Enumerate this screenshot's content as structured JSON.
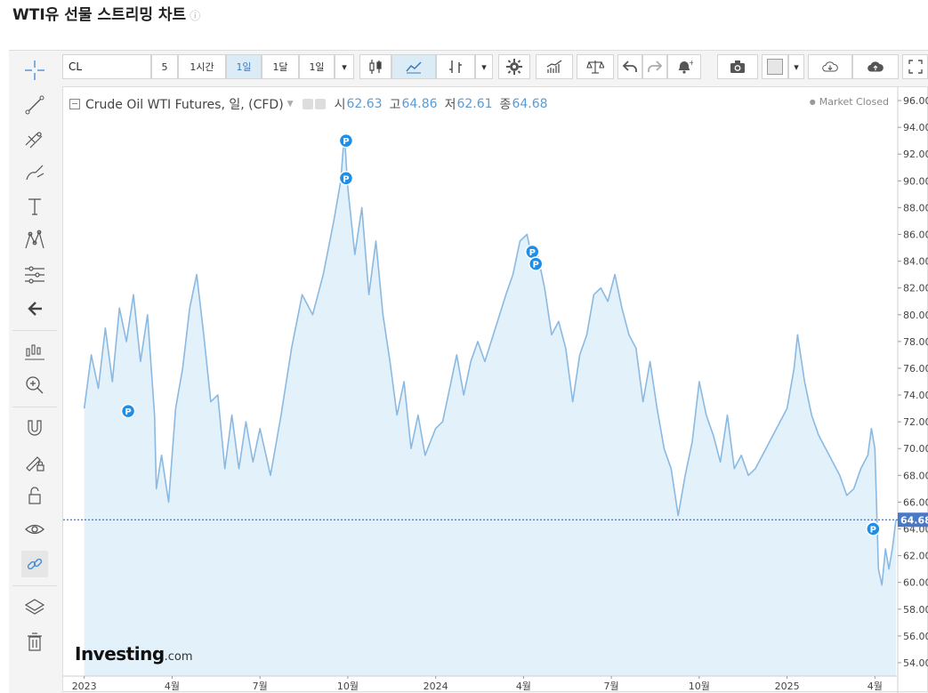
{
  "page": {
    "title": "WTI유 선물 스트리밍 차트",
    "info_icon": "info-circle-icon"
  },
  "toolbar": {
    "symbol": "CL",
    "resolutions": [
      "5",
      "1시간",
      "1일",
      "1달"
    ],
    "selected_resolution": "1일",
    "range": "1일",
    "icons": [
      "candles-icon",
      "line-chart-icon",
      "bars-icon",
      "gear-icon",
      "indicators-icon",
      "compare-icon",
      "undo-icon",
      "redo-icon",
      "alert-icon",
      "camera-icon",
      "color-square-icon",
      "cloud-download-icon",
      "cloud-upload-icon",
      "fullscreen-icon"
    ]
  },
  "left_tools": [
    "crosshair-icon",
    "trend-line-icon",
    "fib-tools-icon",
    "brush-icon",
    "text-icon",
    "pattern-icon",
    "measure-icon",
    "back-arrow-icon",
    "long-position-icon",
    "zoom-icon",
    "magnet-icon",
    "lock-draw-icon",
    "unlock-icon",
    "eye-icon",
    "link-icon",
    "layers-icon",
    "trash-icon"
  ],
  "legend": {
    "name": "Crude Oil WTI Futures, 일, (CFD)",
    "open_label": "시",
    "open": "62.63",
    "high_label": "고",
    "high": "64.86",
    "low_label": "저",
    "low": "62.61",
    "close_label": "종",
    "close": "64.68",
    "status": "Market Closed"
  },
  "watermark": {
    "brand": "Investing",
    "tld": ".com"
  },
  "chart_data": {
    "type": "area",
    "series": [
      {
        "values": [
          [
            2023.0,
            73.0
          ],
          [
            2023.02,
            77.0
          ],
          [
            2023.04,
            74.5
          ],
          [
            2023.06,
            79.0
          ],
          [
            2023.08,
            75.0
          ],
          [
            2023.1,
            80.5
          ],
          [
            2023.12,
            78.0
          ],
          [
            2023.14,
            81.5
          ],
          [
            2023.16,
            76.5
          ],
          [
            2023.18,
            80.0
          ],
          [
            2023.2,
            72.5
          ],
          [
            2023.205,
            67.0
          ],
          [
            2023.22,
            69.5
          ],
          [
            2023.24,
            66.0
          ],
          [
            2023.26,
            73.0
          ],
          [
            2023.28,
            76.0
          ],
          [
            2023.3,
            80.5
          ],
          [
            2023.32,
            83.0
          ],
          [
            2023.34,
            78.5
          ],
          [
            2023.36,
            73.5
          ],
          [
            2023.38,
            74.0
          ],
          [
            2023.4,
            68.5
          ],
          [
            2023.42,
            72.5
          ],
          [
            2023.44,
            68.5
          ],
          [
            2023.46,
            72.0
          ],
          [
            2023.48,
            69.0
          ],
          [
            2023.5,
            71.5
          ],
          [
            2023.53,
            68.0
          ],
          [
            2023.56,
            72.5
          ],
          [
            2023.59,
            77.5
          ],
          [
            2023.62,
            81.5
          ],
          [
            2023.65,
            80.0
          ],
          [
            2023.68,
            83.0
          ],
          [
            2023.71,
            87.0
          ],
          [
            2023.73,
            90.0
          ],
          [
            2023.74,
            93.5
          ],
          [
            2023.75,
            89.5
          ],
          [
            2023.77,
            84.5
          ],
          [
            2023.79,
            88.0
          ],
          [
            2023.81,
            81.5
          ],
          [
            2023.83,
            85.5
          ],
          [
            2023.85,
            80.0
          ],
          [
            2023.87,
            76.5
          ],
          [
            2023.89,
            72.5
          ],
          [
            2023.91,
            75.0
          ],
          [
            2023.93,
            70.0
          ],
          [
            2023.95,
            72.5
          ],
          [
            2023.97,
            69.5
          ],
          [
            2024.0,
            71.5
          ],
          [
            2024.02,
            72.0
          ],
          [
            2024.04,
            74.5
          ],
          [
            2024.06,
            77.0
          ],
          [
            2024.08,
            74.0
          ],
          [
            2024.1,
            76.5
          ],
          [
            2024.12,
            78.0
          ],
          [
            2024.14,
            76.5
          ],
          [
            2024.17,
            79.0
          ],
          [
            2024.2,
            81.5
          ],
          [
            2024.22,
            83.0
          ],
          [
            2024.24,
            85.5
          ],
          [
            2024.26,
            86.0
          ],
          [
            2024.28,
            83.5
          ],
          [
            2024.29,
            84.5
          ],
          [
            2024.31,
            82.0
          ],
          [
            2024.33,
            78.5
          ],
          [
            2024.35,
            79.5
          ],
          [
            2024.37,
            77.5
          ],
          [
            2024.39,
            73.5
          ],
          [
            2024.41,
            77.0
          ],
          [
            2024.43,
            78.5
          ],
          [
            2024.45,
            81.5
          ],
          [
            2024.47,
            82.0
          ],
          [
            2024.49,
            81.0
          ],
          [
            2024.51,
            83.0
          ],
          [
            2024.53,
            80.5
          ],
          [
            2024.55,
            78.5
          ],
          [
            2024.57,
            77.5
          ],
          [
            2024.59,
            73.5
          ],
          [
            2024.61,
            76.5
          ],
          [
            2024.63,
            73.0
          ],
          [
            2024.65,
            70.0
          ],
          [
            2024.67,
            68.5
          ],
          [
            2024.69,
            65.0
          ],
          [
            2024.71,
            68.0
          ],
          [
            2024.73,
            70.5
          ],
          [
            2024.75,
            75.0
          ],
          [
            2024.77,
            72.5
          ],
          [
            2024.79,
            71.0
          ],
          [
            2024.81,
            69.0
          ],
          [
            2024.83,
            72.5
          ],
          [
            2024.85,
            68.5
          ],
          [
            2024.87,
            69.5
          ],
          [
            2024.89,
            68.0
          ],
          [
            2024.91,
            68.5
          ],
          [
            2024.93,
            69.5
          ],
          [
            2024.95,
            70.5
          ],
          [
            2024.97,
            71.5
          ],
          [
            2025.0,
            73.0
          ],
          [
            2025.02,
            76.0
          ],
          [
            2025.03,
            78.5
          ],
          [
            2025.05,
            75.0
          ],
          [
            2025.07,
            72.5
          ],
          [
            2025.09,
            71.0
          ],
          [
            2025.11,
            70.0
          ],
          [
            2025.13,
            69.0
          ],
          [
            2025.15,
            68.0
          ],
          [
            2025.17,
            66.5
          ],
          [
            2025.19,
            67.0
          ],
          [
            2025.21,
            68.5
          ],
          [
            2025.23,
            69.5
          ],
          [
            2025.24,
            71.5
          ],
          [
            2025.25,
            70.0
          ],
          [
            2025.26,
            61.0
          ],
          [
            2025.27,
            59.8
          ],
          [
            2025.28,
            62.5
          ],
          [
            2025.29,
            61.0
          ],
          [
            2025.3,
            62.6
          ],
          [
            2025.31,
            64.68
          ]
        ]
      }
    ],
    "x_ticks": [
      {
        "x": 2023.0,
        "label": "2023"
      },
      {
        "x": 2023.25,
        "label": "4월"
      },
      {
        "x": 2023.5,
        "label": "7월"
      },
      {
        "x": 2023.75,
        "label": "10월"
      },
      {
        "x": 2024.0,
        "label": "2024"
      },
      {
        "x": 2024.25,
        "label": "4월"
      },
      {
        "x": 2024.5,
        "label": "7월"
      },
      {
        "x": 2024.75,
        "label": "10월"
      },
      {
        "x": 2025.0,
        "label": "2025"
      },
      {
        "x": 2025.25,
        "label": "4월"
      }
    ],
    "y_ticks": [
      "54.00",
      "56.00",
      "58.00",
      "60.00",
      "62.00",
      "64.00",
      "66.00",
      "68.00",
      "70.00",
      "72.00",
      "74.00",
      "76.00",
      "78.00",
      "80.00",
      "82.00",
      "84.00",
      "86.00",
      "88.00",
      "90.00",
      "92.00",
      "94.00",
      "96.00"
    ],
    "xlim": [
      2022.94,
      2025.315
    ],
    "ylim": [
      53.0,
      97.0
    ],
    "last_price": {
      "value": 64.68,
      "label": "64.68",
      "color": "#4a78c8"
    },
    "markers": [
      {
        "x": 2023.125,
        "y": 72.8,
        "label": "P"
      },
      {
        "x": 2023.745,
        "y": 93.0,
        "label": "P"
      },
      {
        "x": 2023.745,
        "y": 90.2,
        "label": "P"
      },
      {
        "x": 2024.275,
        "y": 84.7,
        "label": "P"
      },
      {
        "x": 2024.285,
        "y": 83.8,
        "label": "P"
      },
      {
        "x": 2025.245,
        "y": 64.0,
        "label": "P"
      }
    ],
    "colors": {
      "line": "#8ab9e2",
      "fill": "#e3f1fa",
      "marker": "#1e8ee6"
    },
    "grid": false
  }
}
